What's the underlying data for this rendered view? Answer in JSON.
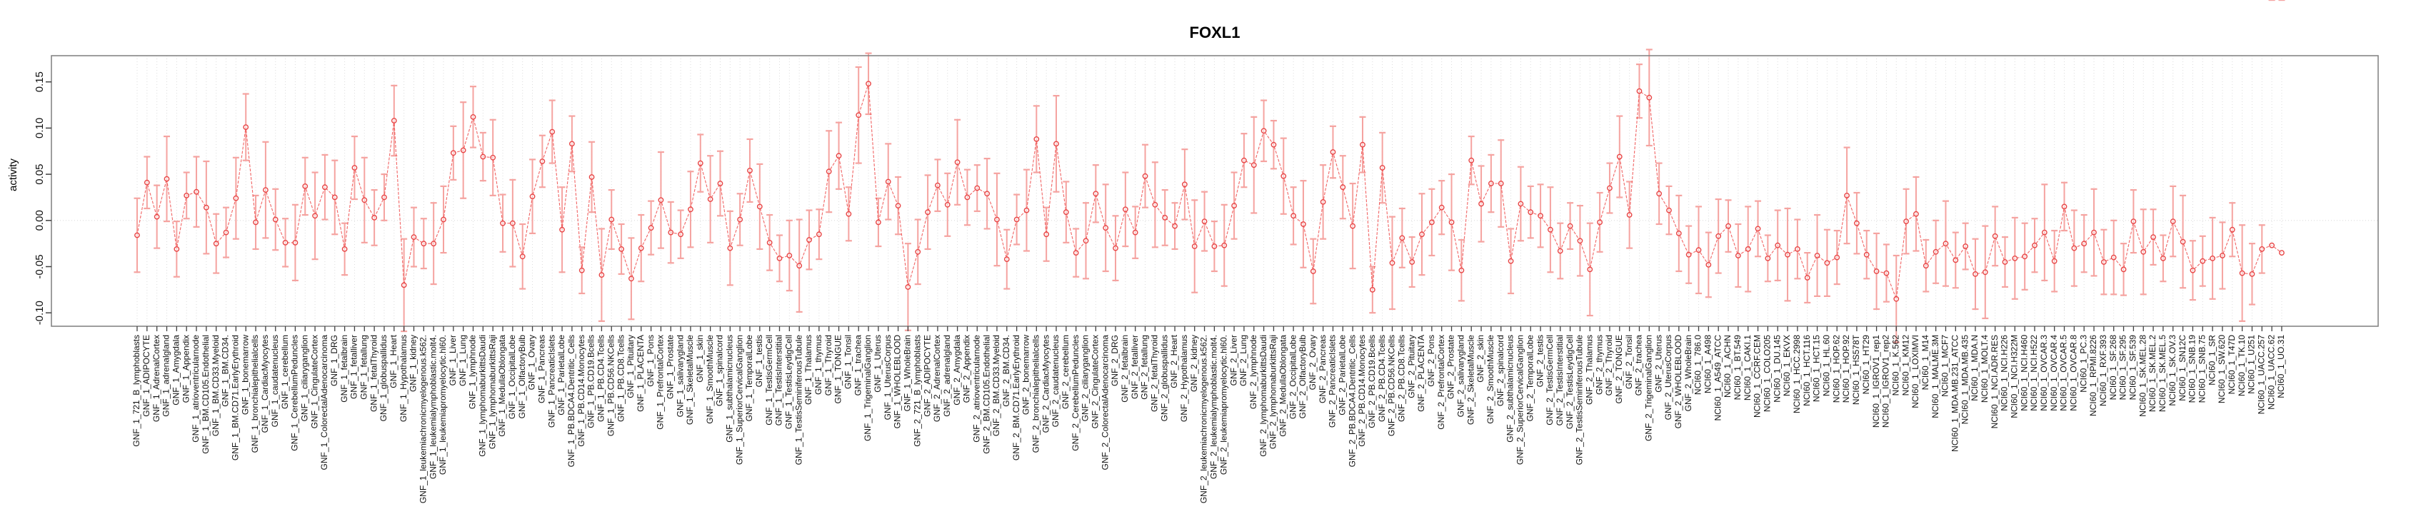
{
  "title": "FOXL1",
  "y_axis": {
    "label": "activity",
    "ticks": [
      0.15,
      0.1,
      0.05,
      0.0,
      -0.05,
      -0.1
    ],
    "tick_labels": [
      "0.15",
      "0.10",
      "0.05",
      "0.00",
      "-0.05",
      "-0.10"
    ]
  },
  "colors": {
    "point": "#e84545",
    "line": "#ee4a4a",
    "error_bar": "#f5a3a0",
    "grid": "#dcdcdc",
    "box": "#7f7f7f",
    "tick": "#404040",
    "label_text": "#111111"
  },
  "chart_data": {
    "type": "line",
    "title": "FOXL1",
    "xlabel": "",
    "ylabel": "activity",
    "ylim": [
      -0.12,
      0.17
    ],
    "legend": "none",
    "grid": "vertical dotted gridline per sample; dotted horizontal line at y=0",
    "marker": "open-circle with error bars",
    "gnf_tissues": [
      "721_B_lymphoblasts",
      "ADIPOCYTE",
      "AdrenalCortex",
      "adrenalgland",
      "Amygdala",
      "Appendix",
      "atrioventricularnode",
      "BM.CD105.Endothelial",
      "BM.CD33.Myeloid",
      "BM.CD34.",
      "BM.CD71.EarlyErythroid",
      "bonemarrow",
      "bronchialepithelialcells",
      "CardiacMyocytes",
      "caudatenucleus",
      "cerebellum",
      "CerebellumPeduncles",
      "ciliaryganglion",
      "CingulateCortex",
      "ColorectalAdenocarcinoma",
      "DRG",
      "fetalbrain",
      "fetalliver",
      "fetallung",
      "fetalThyroid",
      "globuspallidus",
      "Heart",
      "Hypothalamus",
      "kidney",
      "leukemiachronicmyelogenous.k562.",
      "leukemialymphoblastic.molt4.",
      "leukemiapromyelocytic.hl60.",
      "Liver",
      "Lung",
      "lymphnode",
      "lymphomaburkittsDaudi",
      "lymphomaburkittsRaji",
      "MedullaOblongata",
      "OccipitalLobe",
      "OlfactoryBulb",
      "Ovary",
      "Pancreas",
      "PancreaticIslets",
      "ParietalLobe",
      "PB.BDCA4.Dentritic_Cells",
      "PB.CD14.Monocytes",
      "PB.CD19.Bcells",
      "PB.CD4.Tcells",
      "PB.CD56.NKCells",
      "PB.CD8.Tcells",
      "Pituitary",
      "PLACENTA",
      "Pons",
      "PrefrontalCortex",
      "Prostate",
      "salivarygland",
      "SkeletalMuscle",
      "skin",
      "SmoothMuscle",
      "spinalcord",
      "subthalamicnucleus",
      "SuperiorCervicalGanglion",
      "TemporalLobe",
      "testis",
      "TestisGermCell",
      "TestisInterstitial",
      "TestisLeydigCell",
      "TestisSeminiferousTubule",
      "Thalamus",
      "thymus",
      "Thyroid",
      "TONGUE",
      "Tonsil",
      "trachea",
      "TrigeminalGanglion",
      "Uterus",
      "UterusCorpus",
      "WHOLEBLOOD",
      "WholeBrain"
    ],
    "nci60_lines": [
      "786.0",
      "A498",
      "A549_ATCC",
      "ACHN",
      "BT.549",
      "CAKI.1",
      "CCRF.CEM",
      "COLO205",
      "DU.145",
      "EKVX",
      "HCC.2998",
      "HCT.116",
      "HCT.15",
      "HL.60",
      "HOP.62",
      "HOP.92",
      "HS578T",
      "HT29",
      "IGROV1_rep1",
      "IGROV1_rep2",
      "K.562",
      "KM12",
      "LOXIMVI",
      "M14",
      "MALME.3M",
      "MCF7",
      "MDA.MB.231_ATCC",
      "MDA.MB.435",
      "MDA.N",
      "MOLT.4",
      "NCI.ADR.RES",
      "NCI.H226",
      "NCI.H322M",
      "NCI.H460",
      "NCI.H522",
      "OVCAR.3",
      "OVCAR.4",
      "OVCAR.5",
      "OVCAR.8",
      "PC.3",
      "RPMI.8226",
      "RXF.393",
      "SF.268",
      "SF.295",
      "SF.539",
      "SK.MEL.28",
      "SK.MEL.2",
      "SK.MEL.5",
      "SK.OV.3",
      "SN12C",
      "SNB.19",
      "SNB.75",
      "SR",
      "SW.620",
      "T47D",
      "TK.10",
      "U251",
      "UACC.257",
      "UACC.62",
      "UO.31"
    ],
    "groups": [
      {
        "prefix": "GNF_1_",
        "items_key": "gnf_tissues"
      },
      {
        "prefix": "GNF_2_",
        "items_key": "gnf_tissues"
      },
      {
        "prefix": "NCI60_1_",
        "items_key": "nci60_lines"
      }
    ],
    "values": [
      -0.016,
      0.041,
      0.004,
      0.045,
      -0.031,
      0.027,
      0.031,
      0.014,
      -0.025,
      -0.013,
      0.024,
      0.101,
      -0.002,
      0.033,
      0.001,
      -0.024,
      -0.024,
      0.037,
      0.005,
      0.036,
      0.025,
      -0.031,
      0.057,
      0.022,
      0.003,
      0.025,
      0.108,
      -0.07,
      -0.018,
      -0.025,
      -0.025,
      0.001,
      0.073,
      0.076,
      0.112,
      0.069,
      0.068,
      -0.003,
      -0.003,
      -0.039,
      0.026,
      0.064,
      0.096,
      -0.01,
      0.083,
      -0.054,
      0.047,
      -0.059,
      0.001,
      -0.031,
      -0.063,
      -0.03,
      -0.008,
      0.022,
      -0.013,
      -0.015,
      0.012,
      0.062,
      0.023,
      0.04,
      -0.03,
      0.001,
      0.054,
      0.015,
      -0.024,
      -0.041,
      -0.038,
      -0.049,
      -0.021,
      -0.015,
      0.053,
      0.07,
      0.007,
      0.114,
      0.148,
      -0.002,
      0.042,
      0.016,
      -0.072,
      -0.034,
      0.009,
      0.038,
      0.017,
      0.063,
      0.025,
      0.035,
      0.029,
      0.001,
      -0.042,
      0.001,
      0.011,
      0.088,
      -0.015,
      0.083,
      0.009,
      -0.035,
      -0.022,
      0.029,
      -0.008,
      -0.03,
      0.012,
      -0.013,
      0.048,
      0.017,
      0.003,
      -0.006,
      0.039,
      -0.028,
      -0.001,
      -0.028,
      -0.027,
      0.016,
      0.065,
      0.06,
      0.097,
      0.082,
      0.048,
      0.005,
      -0.004,
      -0.055,
      0.02,
      0.074,
      0.036,
      -0.006,
      0.082,
      -0.075,
      0.057,
      -0.046,
      -0.019,
      -0.045,
      -0.015,
      -0.002,
      0.014,
      -0.002,
      -0.054,
      0.065,
      0.018,
      0.04,
      0.04,
      -0.044,
      0.018,
      0.009,
      0.005,
      -0.01,
      -0.033,
      -0.006,
      -0.022,
      -0.053,
      -0.002,
      0.035,
      0.069,
      0.006,
      0.14,
      0.133,
      0.029,
      0.011,
      -0.014,
      -0.037,
      -0.032,
      -0.048,
      -0.017,
      -0.006,
      -0.038,
      -0.031,
      -0.009,
      -0.041,
      -0.027,
      -0.037,
      -0.031,
      -0.062,
      -0.038,
      -0.046,
      -0.04,
      0.027,
      -0.003,
      -0.037,
      -0.055,
      -0.057,
      -0.085,
      -0.001,
      0.007,
      -0.049,
      -0.034,
      -0.025,
      -0.043,
      -0.028,
      -0.058,
      -0.056,
      -0.017,
      -0.045,
      -0.041,
      -0.039,
      -0.027,
      -0.013,
      -0.044,
      0.015,
      -0.03,
      -0.025,
      -0.013,
      -0.045,
      -0.04,
      -0.053,
      -0.001,
      -0.034,
      -0.018,
      -0.041,
      -0.001,
      -0.023,
      -0.054,
      -0.044,
      -0.041,
      -0.038,
      -0.01,
      -0.057,
      -0.058,
      -0.031,
      -0.027,
      -0.035
    ],
    "errors": [
      0.04,
      0.028,
      0.034,
      0.046,
      0.03,
      0.025,
      0.038,
      0.05,
      0.032,
      0.027,
      0.044,
      0.036,
      0.029,
      0.052,
      0.033,
      0.026,
      0.041,
      0.031,
      0.047,
      0.035,
      0.04,
      0.028,
      0.034,
      0.046,
      0.03,
      0.025,
      0.038,
      0.05,
      0.032,
      0.027,
      0.044,
      0.036,
      0.029,
      0.052,
      0.033,
      0.026,
      0.041,
      0.031,
      0.047,
      0.035,
      0.04,
      0.028,
      0.034,
      0.046,
      0.03,
      0.025,
      0.038,
      0.05,
      0.032,
      0.027,
      0.044,
      0.036,
      0.029,
      0.052,
      0.033,
      0.026,
      0.041,
      0.031,
      0.047,
      0.035,
      0.04,
      0.028,
      0.034,
      0.046,
      0.03,
      0.025,
      0.038,
      0.05,
      0.032,
      0.027,
      0.044,
      0.036,
      0.029,
      0.052,
      0.033,
      0.026,
      0.041,
      0.031,
      0.047,
      0.035,
      0.04,
      0.028,
      0.034,
      0.046,
      0.03,
      0.025,
      0.038,
      0.05,
      0.032,
      0.027,
      0.044,
      0.036,
      0.029,
      0.052,
      0.033,
      0.026,
      0.041,
      0.031,
      0.047,
      0.035,
      0.04,
      0.028,
      0.034,
      0.046,
      0.03,
      0.025,
      0.038,
      0.05,
      0.032,
      0.027,
      0.044,
      0.036,
      0.029,
      0.052,
      0.033,
      0.026,
      0.041,
      0.031,
      0.047,
      0.035,
      0.04,
      0.028,
      0.034,
      0.046,
      0.03,
      0.025,
      0.038,
      0.05,
      0.032,
      0.027,
      0.044,
      0.036,
      0.029,
      0.052,
      0.033,
      0.026,
      0.041,
      0.031,
      0.047,
      0.035,
      0.04,
      0.028,
      0.034,
      0.046,
      0.03,
      0.025,
      0.038,
      0.05,
      0.032,
      0.027,
      0.044,
      0.036,
      0.029,
      0.052,
      0.033,
      0.026,
      0.041,
      0.031,
      0.047,
      0.035,
      0.04,
      0.028,
      0.034,
      0.046,
      0.03,
      0.025,
      0.038,
      0.05,
      0.032,
      0.027,
      0.044,
      0.036,
      0.029,
      0.052,
      0.033,
      0.026,
      0.041,
      0.031,
      0.047,
      0.035,
      0.04,
      0.028,
      0.034,
      0.046,
      0.03,
      0.025,
      0.038,
      0.05,
      0.032,
      0.027,
      0.044,
      0.036,
      0.029,
      0.052,
      0.033,
      0.026,
      0.041,
      0.031,
      0.047,
      0.035,
      0.04,
      0.028,
      0.034,
      0.046,
      0.03,
      0.025,
      0.038,
      0.05,
      0.032,
      0.027,
      0.044,
      0.036,
      0.029,
      0.052,
      0.033,
      0.026
    ]
  }
}
